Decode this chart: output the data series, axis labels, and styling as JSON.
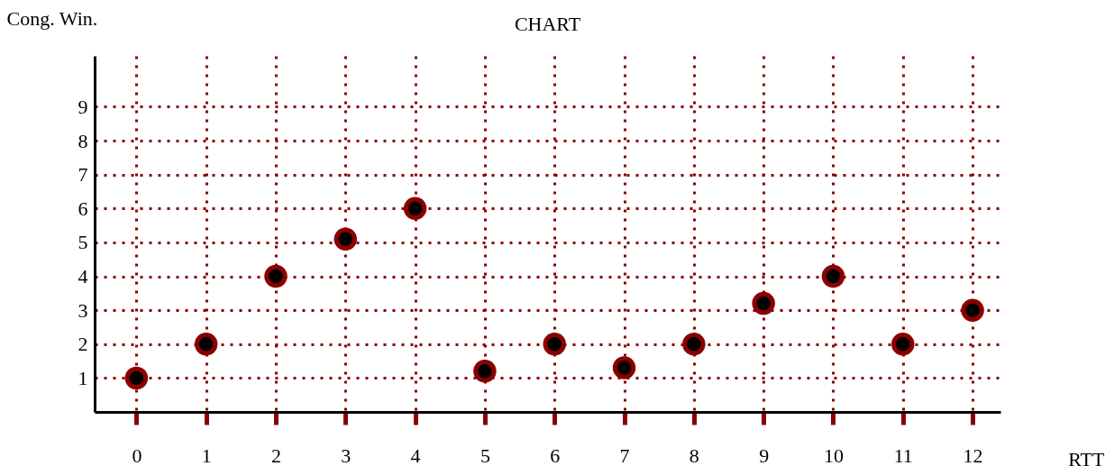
{
  "chart_data": {
    "type": "scatter",
    "title": "CHART",
    "xlabel": "RTT",
    "ylabel": "Cong. Win.",
    "x": [
      0,
      1,
      2,
      3,
      4,
      5,
      6,
      7,
      8,
      9,
      10,
      11,
      12
    ],
    "series": [
      {
        "color": "#000000",
        "values": [
          1,
          2,
          4,
          5.1,
          6,
          1.2,
          2,
          1.3,
          2,
          3.2,
          4,
          2,
          3
        ]
      }
    ],
    "xlim": [
      -0.6,
      12.4
    ],
    "ylim": [
      0,
      10.5
    ],
    "xticks": [
      0,
      1,
      2,
      3,
      4,
      5,
      6,
      7,
      8,
      9,
      10,
      11,
      12
    ],
    "yticks": [
      1,
      2,
      3,
      4,
      5,
      6,
      7,
      8,
      9
    ],
    "grid": true,
    "marker": "circle"
  }
}
